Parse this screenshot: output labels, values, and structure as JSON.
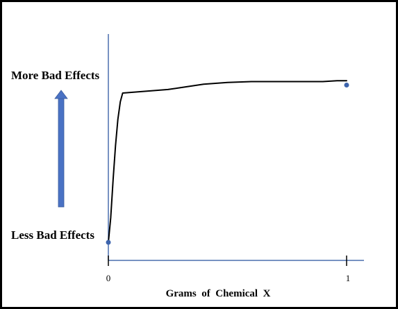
{
  "chart_data": {
    "type": "line",
    "title": "",
    "xlabel": "Grams  of  Chemical  X",
    "ylabel_top": "More Bad Effects",
    "ylabel_bottom": "Less Bad Effects",
    "xlim": [
      0,
      1
    ],
    "ylim": [
      0,
      1
    ],
    "x_ticks": [
      {
        "value": 0,
        "label": "0"
      },
      {
        "value": 1,
        "label": "1"
      }
    ],
    "grid": false,
    "legend": "none",
    "colors": {
      "axis": "#4a6fae",
      "curve": "#000000",
      "endpoint": "#3d64ad",
      "arrow": "#4a72c4"
    },
    "series": [
      {
        "x": [
          0.0,
          0.01,
          0.02,
          0.03,
          0.04,
          0.05,
          0.06,
          0.25,
          0.3,
          0.4,
          0.5,
          0.6,
          0.7,
          0.8,
          0.9,
          0.96,
          1.0
        ],
        "y": [
          0.0,
          0.14,
          0.36,
          0.55,
          0.7,
          0.8,
          0.85,
          0.87,
          0.88,
          0.9,
          0.91,
          0.915,
          0.915,
          0.915,
          0.915,
          0.92,
          0.92
        ]
      }
    ],
    "endpoints": [
      {
        "x": 0,
        "y": 0
      },
      {
        "x": 1,
        "y": 0.915
      }
    ]
  }
}
